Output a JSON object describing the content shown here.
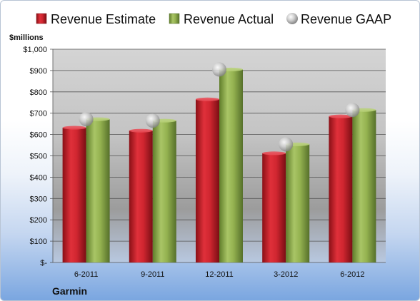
{
  "chart_data": {
    "type": "bar",
    "title": "",
    "unit_label": "$millions",
    "company": "Garmin",
    "categories": [
      "6-2011",
      "9-2011",
      "12-2011",
      "3-2012",
      "6-2012"
    ],
    "series": [
      {
        "name": "Revenue Estimate",
        "kind": "bar",
        "color": "#c8202a",
        "values": [
          632,
          618,
          765,
          512,
          685
        ]
      },
      {
        "name": "Revenue Actual",
        "kind": "bar",
        "color": "#8fae4a",
        "values": [
          672,
          665,
          905,
          554,
          715
        ]
      },
      {
        "name": "Revenue GAAP",
        "kind": "marker",
        "color": "#b8b8b8",
        "values": [
          672,
          665,
          905,
          554,
          715
        ]
      }
    ],
    "ylim": [
      0,
      1000
    ],
    "yticks": [
      0,
      100,
      200,
      300,
      400,
      500,
      600,
      700,
      800,
      900,
      1000
    ],
    "ytick_labels": [
      "$-",
      "$100",
      "$200",
      "$300",
      "$400",
      "$500",
      "$600",
      "$700",
      "$800",
      "$900",
      "$1,000"
    ],
    "grid": true,
    "legend_position": "top"
  },
  "icons": {
    "estimate_swatch": "red-square",
    "actual_swatch": "green-square",
    "gaap_swatch": "grey-sphere"
  }
}
